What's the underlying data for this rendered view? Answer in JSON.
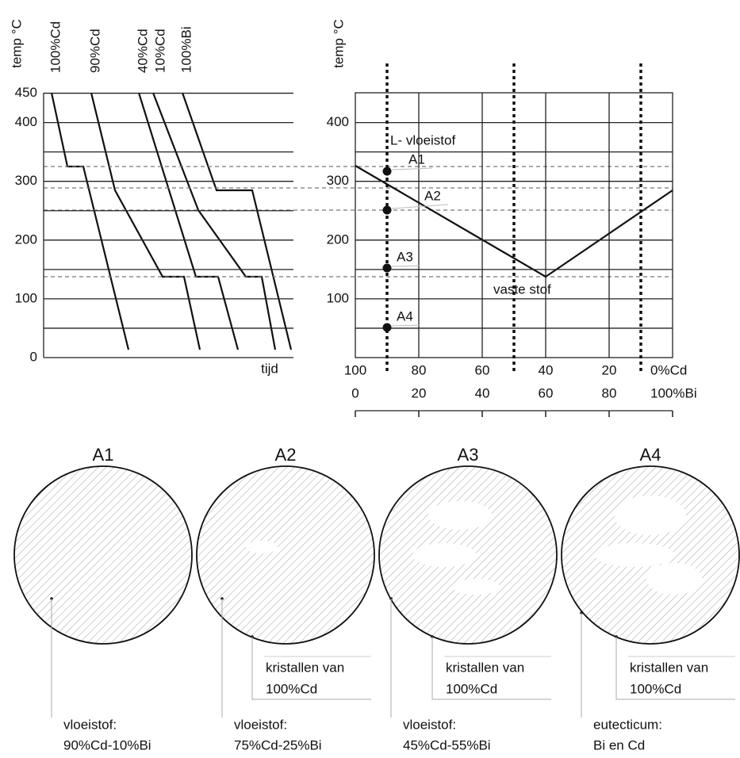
{
  "cooling_chart": {
    "y_label": "temp °C",
    "x_label": "tijd",
    "yticks": [
      0,
      100,
      200,
      300,
      400,
      450
    ],
    "curve_labels": [
      "100%Cd",
      "90%Cd",
      "40%Cd",
      "10%Cd",
      "100%Bi"
    ]
  },
  "phase_chart": {
    "y_label": "temp °C",
    "yticks": [
      100,
      200,
      300,
      400
    ],
    "liquid_label": "L- vloeistof",
    "solid_label": "vaste stof",
    "points": [
      "A1",
      "A2",
      "A3",
      "A4"
    ],
    "cd_axis": [
      100,
      80,
      60,
      40,
      20,
      {
        "value": 0,
        "label": "0%Cd"
      }
    ],
    "bi_axis": [
      0,
      20,
      40,
      60,
      80,
      {
        "value": 100,
        "label": "100%Bi"
      }
    ]
  },
  "samples": [
    {
      "title": "A1",
      "left_callout": [
        "vloeistof:",
        "90%Cd-10%Bi"
      ]
    },
    {
      "title": "A2",
      "left_callout": [
        "vloeistof:",
        "75%Cd-25%Bi"
      ],
      "right_callout": [
        "kristallen van",
        "100%Cd"
      ]
    },
    {
      "title": "A3",
      "left_callout": [
        "vloeistof:",
        "45%Cd-55%Bi"
      ],
      "right_callout": [
        "kristallen van",
        "100%Cd"
      ]
    },
    {
      "title": "A4",
      "left_callout": [
        "eutecticum:",
        "Bi en Cd"
      ],
      "right_callout": [
        "kristallen van",
        "100%Cd"
      ]
    }
  ]
}
